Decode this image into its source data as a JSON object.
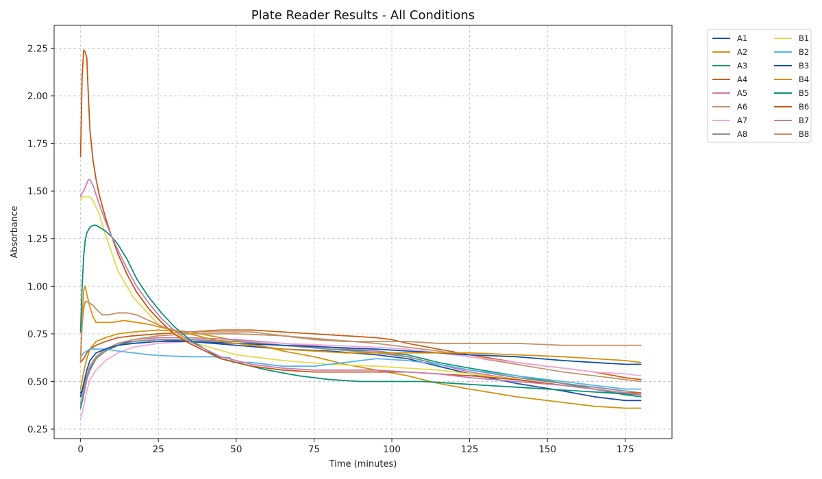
{
  "chart_data": {
    "type": "line",
    "title": "Plate Reader Results - All Conditions",
    "xlabel": "Time (minutes)",
    "ylabel": "Absorbance",
    "xlim": [
      -8.5,
      190
    ],
    "ylim": [
      0.2,
      2.37
    ],
    "xticks": [
      0,
      25,
      50,
      75,
      100,
      125,
      150,
      175
    ],
    "yticks": [
      0.25,
      0.5,
      0.75,
      1.0,
      1.25,
      1.5,
      1.75,
      2.0,
      2.25
    ],
    "xtick_labels": [
      "0",
      "25",
      "50",
      "75",
      "100",
      "125",
      "150",
      "175"
    ],
    "ytick_labels": [
      "0.25",
      "0.50",
      "0.75",
      "1.00",
      "1.25",
      "1.50",
      "1.75",
      "2.00",
      "2.25"
    ],
    "grid": true,
    "legend_position": "outside top-right, 2 columns",
    "series": [
      {
        "name": "A1",
        "color": "#1f4e9c",
        "x": [
          0,
          1,
          2,
          3,
          5,
          8,
          12,
          17,
          25,
          35,
          50,
          65,
          80,
          95,
          105,
          115,
          125,
          140,
          155,
          165,
          175,
          180
        ],
        "y": [
          0.44,
          0.47,
          0.53,
          0.58,
          0.63,
          0.67,
          0.7,
          0.71,
          0.72,
          0.71,
          0.69,
          0.67,
          0.66,
          0.64,
          0.62,
          0.58,
          0.54,
          0.49,
          0.45,
          0.42,
          0.4,
          0.4
        ]
      },
      {
        "name": "A2",
        "color": "#d4920f",
        "x": [
          0,
          1,
          2,
          3,
          5,
          8,
          12,
          17,
          25,
          35,
          45,
          55,
          65,
          75,
          85,
          95,
          105,
          115,
          125,
          140,
          155,
          165,
          175,
          180
        ],
        "y": [
          0.46,
          0.55,
          0.62,
          0.67,
          0.71,
          0.73,
          0.75,
          0.76,
          0.77,
          0.76,
          0.73,
          0.7,
          0.66,
          0.63,
          0.59,
          0.56,
          0.53,
          0.49,
          0.46,
          0.42,
          0.39,
          0.37,
          0.36,
          0.36
        ]
      },
      {
        "name": "A3",
        "color": "#0f9a72",
        "x": [
          0,
          1,
          2,
          3,
          5,
          8,
          12,
          17,
          25,
          35,
          50,
          65,
          80,
          95,
          105,
          115,
          125,
          140,
          155,
          165,
          175,
          180
        ],
        "y": [
          0.36,
          0.43,
          0.51,
          0.56,
          0.62,
          0.66,
          0.69,
          0.71,
          0.72,
          0.72,
          0.71,
          0.69,
          0.67,
          0.66,
          0.64,
          0.6,
          0.57,
          0.53,
          0.49,
          0.46,
          0.43,
          0.42
        ]
      },
      {
        "name": "A4",
        "color": "#c95f14",
        "x": [
          0,
          1,
          2,
          3,
          5,
          8,
          12,
          17,
          25,
          35,
          45,
          55,
          65,
          75,
          85,
          95,
          100,
          105,
          115,
          125,
          140,
          155,
          165,
          175,
          180
        ],
        "y": [
          0.6,
          0.62,
          0.65,
          0.67,
          0.69,
          0.71,
          0.73,
          0.74,
          0.75,
          0.76,
          0.77,
          0.77,
          0.76,
          0.75,
          0.74,
          0.73,
          0.72,
          0.7,
          0.67,
          0.64,
          0.6,
          0.57,
          0.55,
          0.52,
          0.51
        ]
      },
      {
        "name": "A5",
        "color": "#cc79a7",
        "x": [
          0,
          1,
          2,
          3,
          5,
          8,
          12,
          17,
          25,
          35,
          50,
          65,
          80,
          95,
          105,
          115,
          125,
          140,
          155,
          165,
          175,
          180
        ],
        "y": [
          0.42,
          0.47,
          0.53,
          0.58,
          0.63,
          0.67,
          0.7,
          0.72,
          0.73,
          0.73,
          0.72,
          0.7,
          0.68,
          0.66,
          0.63,
          0.59,
          0.55,
          0.51,
          0.48,
          0.46,
          0.44,
          0.43
        ]
      },
      {
        "name": "A6",
        "color": "#c0956e",
        "x": [
          0,
          1,
          2,
          3,
          5,
          8,
          12,
          17,
          25,
          35,
          50,
          65,
          80,
          95,
          105,
          115,
          125,
          140,
          155,
          165,
          175,
          180
        ],
        "y": [
          0.38,
          0.44,
          0.51,
          0.57,
          0.63,
          0.67,
          0.7,
          0.72,
          0.74,
          0.75,
          0.75,
          0.74,
          0.72,
          0.7,
          0.68,
          0.66,
          0.63,
          0.59,
          0.55,
          0.53,
          0.51,
          0.5
        ]
      },
      {
        "name": "A7",
        "color": "#f0a8dc",
        "x": [
          0,
          1,
          2,
          3,
          5,
          8,
          12,
          17,
          25,
          35,
          50,
          65,
          80,
          95,
          105,
          115,
          125,
          140,
          155,
          165,
          175,
          180
        ],
        "y": [
          0.3,
          0.37,
          0.45,
          0.51,
          0.56,
          0.61,
          0.65,
          0.68,
          0.7,
          0.71,
          0.71,
          0.7,
          0.69,
          0.68,
          0.67,
          0.65,
          0.63,
          0.6,
          0.57,
          0.55,
          0.54,
          0.53
        ]
      },
      {
        "name": "A8",
        "color": "#8c8c8c",
        "x": [
          0,
          1,
          2,
          3,
          5,
          8,
          12,
          17,
          25,
          35,
          50,
          65,
          80,
          95,
          105,
          115,
          125,
          140,
          155,
          165,
          175,
          180
        ],
        "y": [
          0.38,
          0.45,
          0.52,
          0.57,
          0.62,
          0.66,
          0.69,
          0.71,
          0.72,
          0.72,
          0.71,
          0.69,
          0.67,
          0.65,
          0.63,
          0.59,
          0.56,
          0.52,
          0.49,
          0.47,
          0.45,
          0.44
        ]
      },
      {
        "name": "B1",
        "color": "#e6d94a",
        "x": [
          0,
          0.5,
          1,
          2,
          3,
          4,
          6,
          8,
          12,
          17,
          25,
          35,
          50,
          65,
          80,
          95,
          105,
          115,
          125,
          140,
          155,
          165,
          175,
          180
        ],
        "y": [
          1.45,
          1.47,
          1.47,
          1.47,
          1.47,
          1.45,
          1.38,
          1.27,
          1.08,
          0.94,
          0.8,
          0.71,
          0.64,
          0.61,
          0.59,
          0.58,
          0.57,
          0.56,
          0.54,
          0.51,
          0.48,
          0.46,
          0.44,
          0.44
        ]
      },
      {
        "name": "B2",
        "color": "#56b4e9",
        "x": [
          0,
          0.5,
          1,
          2,
          3,
          5,
          8,
          12,
          17,
          22,
          27,
          35,
          42,
          48,
          49,
          50,
          55,
          65,
          75,
          85,
          95,
          105,
          115,
          125,
          140,
          155,
          165,
          175,
          180
        ],
        "y": [
          0.63,
          0.64,
          0.65,
          0.66,
          0.67,
          0.67,
          0.67,
          0.66,
          0.65,
          0.64,
          0.635,
          0.63,
          0.63,
          0.625,
          0.6,
          0.6,
          0.6,
          0.58,
          0.58,
          0.6,
          0.62,
          0.61,
          0.59,
          0.56,
          0.53,
          0.5,
          0.48,
          0.46,
          0.46
        ]
      },
      {
        "name": "B3",
        "color": "#0f4fa8",
        "x": [
          0,
          1,
          2,
          3,
          5,
          8,
          12,
          17,
          25,
          35,
          50,
          65,
          80,
          95,
          105,
          115,
          125,
          140,
          155,
          165,
          175,
          180
        ],
        "y": [
          0.42,
          0.49,
          0.56,
          0.61,
          0.65,
          0.67,
          0.69,
          0.7,
          0.71,
          0.71,
          0.7,
          0.69,
          0.68,
          0.67,
          0.66,
          0.65,
          0.64,
          0.63,
          0.61,
          0.6,
          0.59,
          0.59
        ]
      },
      {
        "name": "B4",
        "color": "#d98e0a",
        "x": [
          0,
          0.5,
          1,
          1.5,
          2,
          3,
          4,
          5,
          7,
          10,
          14,
          18,
          22,
          27,
          35,
          45,
          55,
          65,
          75,
          85,
          95,
          105,
          115,
          125,
          140,
          155,
          165,
          175,
          180
        ],
        "y": [
          0.62,
          0.82,
          0.98,
          1.0,
          0.96,
          0.89,
          0.84,
          0.81,
          0.81,
          0.81,
          0.82,
          0.81,
          0.8,
          0.78,
          0.75,
          0.71,
          0.69,
          0.67,
          0.66,
          0.65,
          0.65,
          0.65,
          0.65,
          0.65,
          0.64,
          0.63,
          0.62,
          0.61,
          0.6
        ]
      },
      {
        "name": "B5",
        "color": "#089174",
        "x": [
          0,
          0.5,
          1,
          1.5,
          2,
          3,
          4,
          5,
          6,
          8,
          10,
          12,
          15,
          18,
          22,
          26,
          30,
          35,
          40,
          45,
          50,
          55,
          60,
          70,
          80,
          90,
          100,
          110,
          120,
          130,
          140,
          150,
          160,
          170,
          180
        ],
        "y": [
          0.76,
          1.0,
          1.16,
          1.24,
          1.28,
          1.31,
          1.32,
          1.32,
          1.31,
          1.29,
          1.26,
          1.22,
          1.14,
          1.04,
          0.94,
          0.86,
          0.79,
          0.72,
          0.67,
          0.62,
          0.6,
          0.58,
          0.56,
          0.53,
          0.51,
          0.5,
          0.5,
          0.5,
          0.49,
          0.48,
          0.47,
          0.46,
          0.45,
          0.44,
          0.43
        ]
      },
      {
        "name": "B6",
        "color": "#c4560c",
        "x": [
          0,
          0.5,
          1,
          1.5,
          2,
          2.5,
          3,
          4,
          5,
          6,
          8,
          10,
          12,
          15,
          18,
          22,
          26,
          30,
          35,
          40,
          45,
          50,
          55,
          65,
          75,
          85,
          95,
          105,
          115,
          125,
          140,
          155,
          165,
          175,
          180
        ],
        "y": [
          1.68,
          2.1,
          2.24,
          2.23,
          2.2,
          2.0,
          1.82,
          1.66,
          1.56,
          1.48,
          1.36,
          1.26,
          1.17,
          1.06,
          0.97,
          0.88,
          0.81,
          0.75,
          0.7,
          0.66,
          0.62,
          0.6,
          0.58,
          0.56,
          0.55,
          0.55,
          0.55,
          0.55,
          0.54,
          0.53,
          0.51,
          0.48,
          0.46,
          0.44,
          0.44
        ]
      },
      {
        "name": "B7",
        "color": "#c77cba",
        "x": [
          0,
          0.5,
          1,
          1.5,
          2,
          2.5,
          3,
          4,
          5,
          6,
          8,
          10,
          12,
          15,
          18,
          22,
          26,
          30,
          35,
          40,
          45,
          50,
          55,
          65,
          75,
          85,
          95,
          105,
          115,
          125,
          140,
          155,
          165,
          175,
          180
        ],
        "y": [
          1.47,
          1.49,
          1.5,
          1.52,
          1.54,
          1.56,
          1.56,
          1.53,
          1.48,
          1.43,
          1.34,
          1.26,
          1.19,
          1.09,
          1.0,
          0.91,
          0.83,
          0.77,
          0.71,
          0.67,
          0.63,
          0.61,
          0.59,
          0.57,
          0.56,
          0.56,
          0.56,
          0.55,
          0.54,
          0.52,
          0.5,
          0.48,
          0.46,
          0.44,
          0.43
        ]
      },
      {
        "name": "B8",
        "color": "#c29068",
        "x": [
          0,
          0.5,
          1,
          1.5,
          2,
          3,
          4,
          5,
          7,
          9,
          12,
          15,
          18,
          22,
          26,
          30,
          35,
          45,
          55,
          65,
          75,
          85,
          95,
          105,
          115,
          125,
          140,
          155,
          165,
          175,
          180
        ],
        "y": [
          0.6,
          0.8,
          0.88,
          0.92,
          0.92,
          0.91,
          0.9,
          0.88,
          0.85,
          0.85,
          0.86,
          0.86,
          0.85,
          0.82,
          0.79,
          0.77,
          0.76,
          0.76,
          0.76,
          0.74,
          0.72,
          0.71,
          0.71,
          0.71,
          0.7,
          0.7,
          0.7,
          0.69,
          0.69,
          0.69,
          0.69
        ]
      }
    ]
  }
}
